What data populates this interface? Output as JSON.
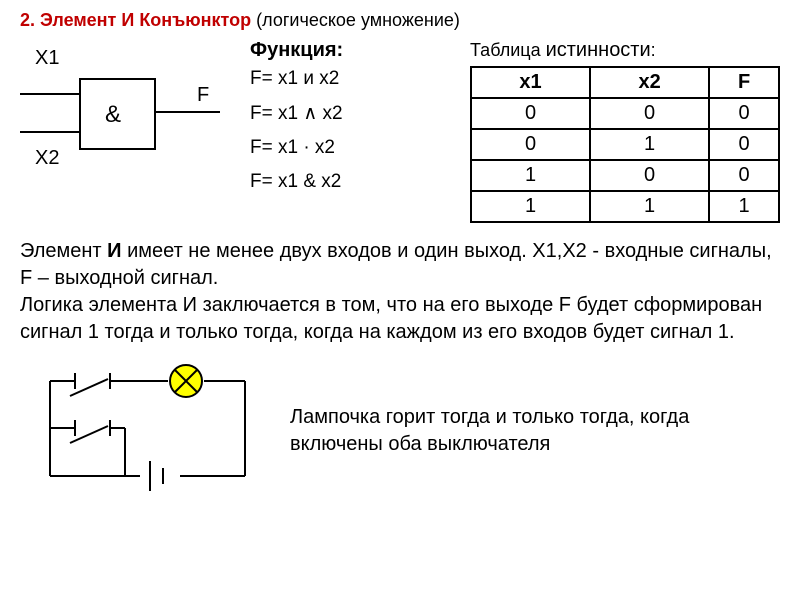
{
  "heading": {
    "number": "2.",
    "title": "Элемент И Конъюнктор",
    "subtitle": "(логическое умножение)"
  },
  "gate": {
    "in1": "X1",
    "in2": "X2",
    "symbol": "&",
    "out": "F",
    "box_stroke": "#000000",
    "box_stroke_width": 2,
    "line_stroke": "#000000",
    "line_stroke_width": 2
  },
  "functions": {
    "title": "Функция:",
    "lines": [
      "F= x1 и x2",
      "F= x1 ∧ x2",
      "F= x1 · x2",
      "F= x1 & x2"
    ]
  },
  "truth": {
    "title_prefix": "Таблица",
    "title_word": "истинности",
    "title_suffix": ":",
    "headers": [
      "x1",
      "x2",
      "F"
    ],
    "rows": [
      [
        "0",
        "0",
        "0"
      ],
      [
        "0",
        "1",
        "0"
      ],
      [
        "1",
        "0",
        "0"
      ],
      [
        "1",
        "1",
        "1"
      ]
    ],
    "border_color": "#000000"
  },
  "description": "Элемент И имеет не менее двух входов и один выход. X1,X2  - входные сигналы, F – выходной сигнал.\nЛогика элемента И заключается в том, что на его выходе F будет сформирован сигнал 1 тогда и только тогда, когда на каждом из его входов будет сигнал 1.",
  "description_bold": "И",
  "circuit": {
    "line_stroke": "#000000",
    "line_stroke_width": 2,
    "lamp_fill": "#ffff00",
    "lamp_stroke": "#000000",
    "lamp_stroke_width": 2,
    "lamp_radius": 16
  },
  "circuit_desc": "Лампочка горит тогда и только тогда, когда включены оба выключателя"
}
